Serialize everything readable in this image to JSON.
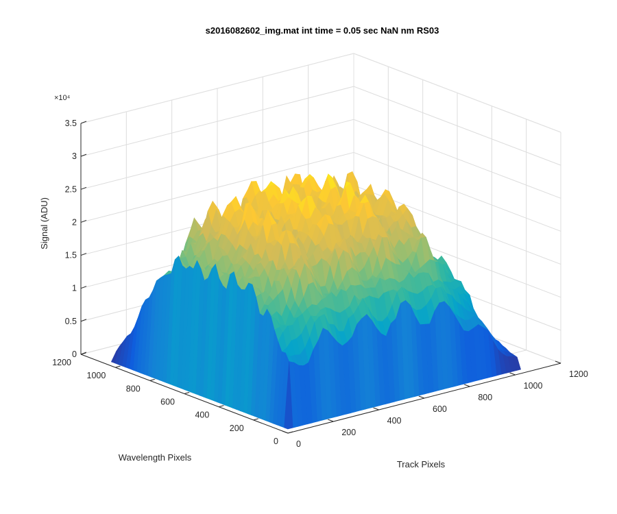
{
  "chart_data": {
    "type": "surface",
    "title": "s2016082602_img.mat int time = 0.05 sec  NaN nm RS03",
    "xlabel": "Track Pixels",
    "ylabel": "Wavelength Pixels",
    "zlabel": "Signal (ADU)",
    "xlim": [
      0,
      1200
    ],
    "ylim": [
      0,
      1200
    ],
    "zlim": [
      0,
      35000
    ],
    "x_ticks": [
      "0",
      "200",
      "400",
      "600",
      "800",
      "1000",
      "1200"
    ],
    "y_ticks": [
      "0",
      "200",
      "400",
      "600",
      "800",
      "1000",
      "1200"
    ],
    "z_ticks": [
      "0",
      "0.5",
      "1",
      "1.5",
      "2",
      "2.5",
      "3",
      "3.5"
    ],
    "z_exponent": "×10⁴",
    "colormap": [
      "#352a87",
      "#0f5cdd",
      "#1481d6",
      "#06a4ca",
      "#2eb7a4",
      "#87bf77",
      "#d1bb59",
      "#fec832",
      "#f9fb0e"
    ],
    "surface_extent": {
      "track": [
        0,
        1024
      ],
      "wavelength": [
        0,
        1024
      ]
    },
    "peak_signal": 31000,
    "track_profile_peak_at": 420,
    "wavelength_profile_peak_at": 450,
    "grid": true
  }
}
